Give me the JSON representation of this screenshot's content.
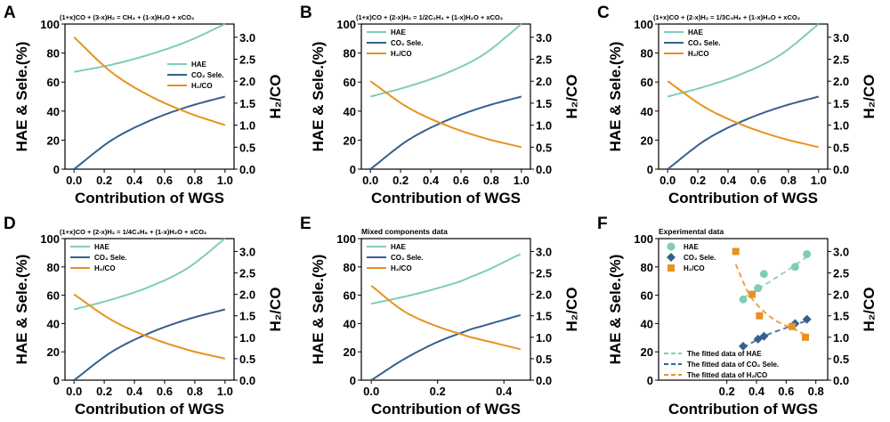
{
  "colors": {
    "hae": "#7fcdb4",
    "co2": "#36608c",
    "h2co": "#e8921f"
  },
  "axis_labels": {
    "y_left": "HAE & Sele.(%)",
    "y_right": "H₂/CO",
    "x": "Contribution of WGS"
  },
  "chart_data": [
    {
      "id": "A",
      "type": "line",
      "title": "(1+x)CO + (3-x)H₂ = CH₄ + (1-x)H₂O + xCO₂",
      "xlim": [
        -0.06,
        1.06
      ],
      "ylim": [
        0,
        100
      ],
      "y2lim": [
        0,
        3.3
      ],
      "xticks": [
        0,
        0.2,
        0.4,
        0.6,
        0.8,
        1.0
      ],
      "legend": "center-right",
      "x": [
        0,
        0.25,
        0.5,
        0.75,
        1
      ],
      "series": [
        {
          "name": "HAE",
          "key": "hae",
          "axis": "left",
          "values": [
            67,
            72,
            79,
            88,
            100
          ]
        },
        {
          "name": "CO₂ Sele.",
          "key": "co2",
          "axis": "left",
          "values": [
            0,
            20,
            33.3,
            42.9,
            50
          ]
        },
        {
          "name": "H₂/CO",
          "key": "h2co",
          "axis": "right",
          "values": [
            3.0,
            2.2,
            1.67,
            1.29,
            1.0
          ]
        }
      ]
    },
    {
      "id": "B",
      "type": "line",
      "title": "(1+x)CO + (2-x)H₂ = 1/2C₂H₄ + (1-x)H₂O + xCO₂",
      "xlim": [
        -0.06,
        1.06
      ],
      "ylim": [
        0,
        100
      ],
      "y2lim": [
        0,
        3.3
      ],
      "xticks": [
        0,
        0.2,
        0.4,
        0.6,
        0.8,
        1.0
      ],
      "legend": "top-left",
      "x": [
        0,
        0.25,
        0.5,
        0.75,
        1
      ],
      "series": [
        {
          "name": "HAE",
          "key": "hae",
          "axis": "left",
          "values": [
            50,
            57,
            66,
            79,
            100
          ]
        },
        {
          "name": "CO₂ Sele.",
          "key": "co2",
          "axis": "left",
          "values": [
            0,
            20,
            33.3,
            42.9,
            50
          ]
        },
        {
          "name": "H₂/CO",
          "key": "h2co",
          "axis": "right",
          "values": [
            2.0,
            1.4,
            1.0,
            0.71,
            0.5
          ]
        }
      ]
    },
    {
      "id": "C",
      "type": "line",
      "title": "(1+x)CO + (2-x)H₂ = 1/3C₃H₆ + (1-x)H₂O + xCO₂",
      "xlim": [
        -0.06,
        1.06
      ],
      "ylim": [
        0,
        100
      ],
      "y2lim": [
        0,
        3.3
      ],
      "xticks": [
        0,
        0.2,
        0.4,
        0.6,
        0.8,
        1.0
      ],
      "legend": "top-left",
      "x": [
        0,
        0.25,
        0.5,
        0.75,
        1
      ],
      "series": [
        {
          "name": "HAE",
          "key": "hae",
          "axis": "left",
          "values": [
            50,
            57,
            66,
            79,
            100
          ]
        },
        {
          "name": "CO₂ Sele.",
          "key": "co2",
          "axis": "left",
          "values": [
            0,
            20,
            33.3,
            42.9,
            50
          ]
        },
        {
          "name": "H₂/CO",
          "key": "h2co",
          "axis": "right",
          "values": [
            2.0,
            1.4,
            1.0,
            0.71,
            0.5
          ]
        }
      ]
    },
    {
      "id": "D",
      "type": "line",
      "title": "(1+x)CO + (2-x)H₂ = 1/4C₄H₈ + (1-x)H₂O + xCO₂",
      "xlim": [
        -0.06,
        1.06
      ],
      "ylim": [
        0,
        100
      ],
      "y2lim": [
        0,
        3.3
      ],
      "xticks": [
        0,
        0.2,
        0.4,
        0.6,
        0.8,
        1.0
      ],
      "legend": "top-left",
      "x": [
        0,
        0.25,
        0.5,
        0.75,
        1
      ],
      "series": [
        {
          "name": "HAE",
          "key": "hae",
          "axis": "left",
          "values": [
            50,
            57,
            66,
            79,
            100
          ]
        },
        {
          "name": "CO₂ Sele.",
          "key": "co2",
          "axis": "left",
          "values": [
            0,
            20,
            33.3,
            42.9,
            50
          ]
        },
        {
          "name": "H₂/CO",
          "key": "h2co",
          "axis": "right",
          "values": [
            2.0,
            1.4,
            1.0,
            0.71,
            0.5
          ]
        }
      ]
    },
    {
      "id": "E",
      "type": "line",
      "title": "Mixed components data",
      "xlim": [
        -0.03,
        0.48
      ],
      "ylim": [
        0,
        100
      ],
      "y2lim": [
        0,
        3.3
      ],
      "xticks": [
        0,
        0.2,
        0.4
      ],
      "legend": "top-left",
      "x": [
        0,
        0.1,
        0.2,
        0.3,
        0.45
      ],
      "series": [
        {
          "name": "HAE",
          "key": "hae",
          "axis": "left",
          "values": [
            54,
            59,
            65,
            73,
            89
          ]
        },
        {
          "name": "CO₂ Sele.",
          "key": "co2",
          "axis": "left",
          "values": [
            0,
            15,
            27,
            36,
            46
          ]
        },
        {
          "name": "H₂/CO",
          "key": "h2co",
          "axis": "right",
          "values": [
            2.2,
            1.6,
            1.25,
            1.0,
            0.72
          ]
        }
      ]
    },
    {
      "id": "F",
      "type": "scatter",
      "title": "Experimental data",
      "xlim": [
        -0.26,
        0.88
      ],
      "ylim": [
        0,
        100
      ],
      "y2lim": [
        0,
        3.3
      ],
      "xticks": [
        0.2,
        0.4,
        0.6,
        0.8
      ],
      "legend": "top-left",
      "series": [
        {
          "name": "HAE",
          "key": "hae",
          "axis": "left",
          "marker": "circle",
          "x": [
            0.31,
            0.41,
            0.45,
            0.66,
            0.74
          ],
          "values": [
            57,
            65,
            75,
            80,
            89
          ]
        },
        {
          "name": "CO₂ Sele.",
          "key": "co2",
          "axis": "left",
          "marker": "diamond",
          "x": [
            0.31,
            0.41,
            0.45,
            0.66,
            0.74
          ],
          "values": [
            24,
            29,
            31,
            40,
            43
          ]
        },
        {
          "name": "H₂/CO",
          "key": "h2co",
          "axis": "right",
          "marker": "square",
          "x": [
            0.26,
            0.37,
            0.42,
            0.64,
            0.73
          ],
          "values": [
            3.0,
            2.0,
            1.5,
            1.25,
            1.0
          ]
        }
      ],
      "fits": [
        {
          "name": "The fitted data of HAE",
          "key": "hae",
          "axis": "left",
          "x": [
            0.31,
            0.45,
            0.6,
            0.74
          ],
          "values": [
            58,
            67,
            77,
            87
          ]
        },
        {
          "name": "The fitted data of CO₂ Sele.",
          "key": "co2",
          "axis": "left",
          "x": [
            0.31,
            0.45,
            0.6,
            0.74
          ],
          "values": [
            23,
            31,
            37,
            42
          ]
        },
        {
          "name": "The fitted data of H₂/CO",
          "key": "h2co",
          "axis": "right",
          "x": [
            0.26,
            0.35,
            0.45,
            0.55,
            0.65,
            0.73
          ],
          "values": [
            2.7,
            2.0,
            1.6,
            1.35,
            1.2,
            1.05
          ]
        }
      ]
    }
  ]
}
